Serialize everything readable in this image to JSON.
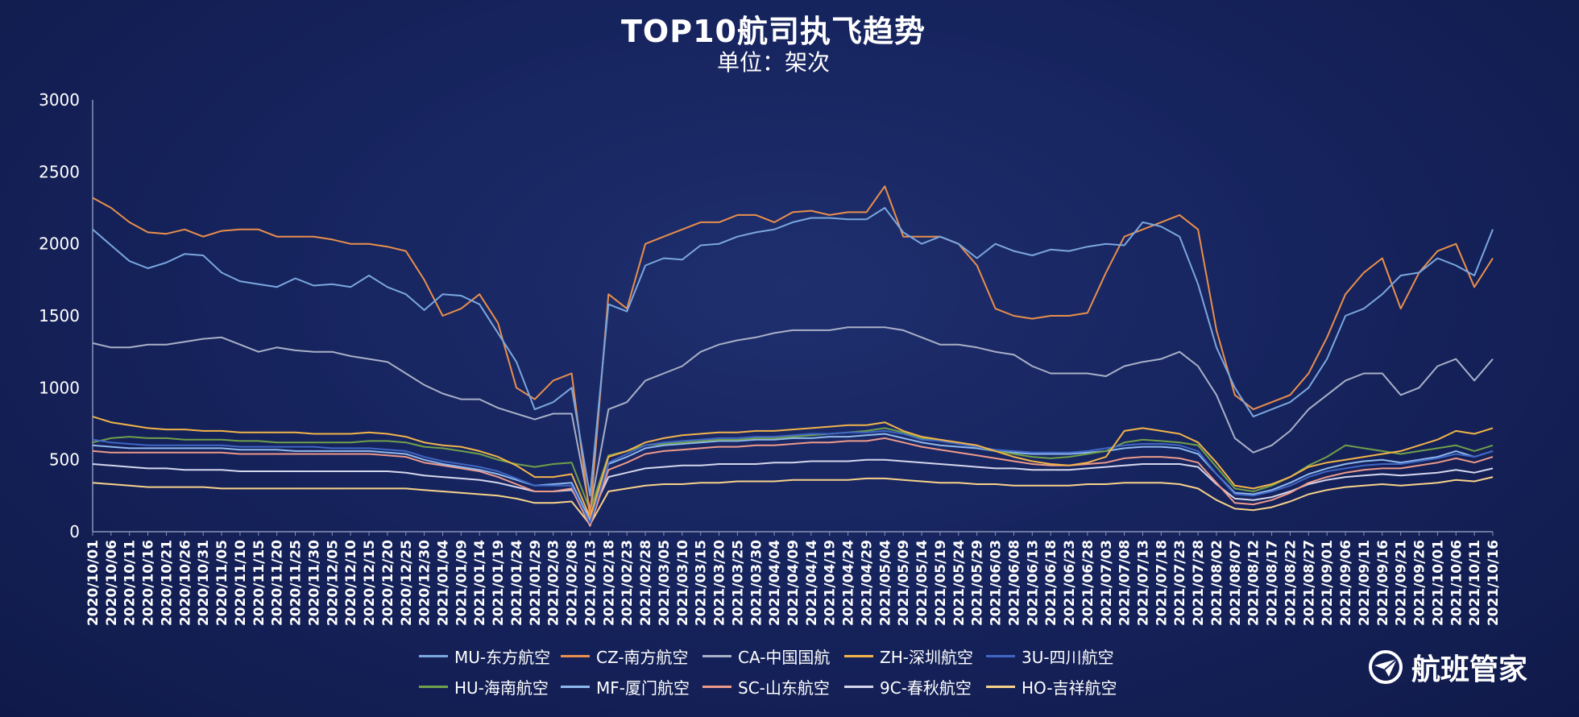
{
  "chart_data": {
    "type": "line",
    "title": "TOP10航司执飞趋势",
    "subtitle": "单位：架次",
    "ylim": [
      0,
      3000
    ],
    "y_ticks": [
      0,
      500,
      1000,
      1500,
      2000,
      2500,
      3000
    ],
    "x_tick_labels": [
      "2020/10/01",
      "2020/10/06",
      "2020/10/11",
      "2020/10/16",
      "2020/10/21",
      "2020/10/26",
      "2020/10/31",
      "2020/11/05",
      "2020/11/10",
      "2020/11/15",
      "2020/11/20",
      "2020/11/25",
      "2020/11/30",
      "2020/12/05",
      "2020/12/10",
      "2020/12/15",
      "2020/12/20",
      "2020/12/25",
      "2020/12/30",
      "2021/01/04",
      "2021/01/09",
      "2021/01/14",
      "2021/01/19",
      "2021/01/24",
      "2021/01/29",
      "2021/02/03",
      "2021/02/08",
      "2021/02/13",
      "2021/02/18",
      "2021/02/23",
      "2021/02/28",
      "2021/03/05",
      "2021/03/10",
      "2021/03/15",
      "2021/03/20",
      "2021/03/25",
      "2021/03/30",
      "2021/04/04",
      "2021/04/09",
      "2021/04/14",
      "2021/04/19",
      "2021/04/24",
      "2021/04/29",
      "2021/05/04",
      "2021/05/09",
      "2021/05/14",
      "2021/05/19",
      "2021/05/24",
      "2021/05/29",
      "2021/06/03",
      "2021/06/08",
      "2021/06/13",
      "2021/06/18",
      "2021/06/23",
      "2021/06/28",
      "2021/07/03",
      "2021/07/08",
      "2021/07/13",
      "2021/07/18",
      "2021/07/23",
      "2021/07/28",
      "2021/08/02",
      "2021/08/07",
      "2021/08/12",
      "2021/08/17",
      "2021/08/22",
      "2021/08/27",
      "2021/09/01",
      "2021/09/06",
      "2021/09/11",
      "2021/09/16",
      "2021/09/21",
      "2021/09/26",
      "2021/10/01",
      "2021/10/06",
      "2021/10/11",
      "2021/10/16"
    ],
    "legend_position": "bottom",
    "grid": false,
    "series": [
      {
        "name": "MU-东方航空",
        "color": "#7ba7df",
        "values": [
          2100,
          1990,
          1880,
          1830,
          1870,
          1930,
          1920,
          1800,
          1740,
          1720,
          1700,
          1760,
          1710,
          1720,
          1700,
          1780,
          1700,
          1650,
          1540,
          1650,
          1640,
          1580,
          1380,
          1180,
          850,
          900,
          1000,
          250,
          1580,
          1530,
          1850,
          1900,
          1890,
          1990,
          2000,
          2050,
          2080,
          2100,
          2150,
          2180,
          2180,
          2170,
          2170,
          2250,
          2080,
          2000,
          2050,
          2000,
          1900,
          2000,
          1950,
          1920,
          1960,
          1950,
          1980,
          2000,
          1990,
          2150,
          2120,
          2050,
          1720,
          1280,
          1000,
          800,
          850,
          900,
          1000,
          1200,
          1500,
          1550,
          1650,
          1780,
          1800,
          1900,
          1850,
          1780,
          2100
        ]
      },
      {
        "name": "CZ-南方航空",
        "color": "#e98f4c",
        "values": [
          2320,
          2250,
          2150,
          2080,
          2070,
          2100,
          2050,
          2090,
          2100,
          2100,
          2050,
          2050,
          2050,
          2030,
          2000,
          2000,
          1980,
          1950,
          1750,
          1500,
          1550,
          1650,
          1450,
          1000,
          920,
          1050,
          1100,
          100,
          1650,
          1550,
          2000,
          2050,
          2100,
          2150,
          2150,
          2200,
          2200,
          2150,
          2220,
          2230,
          2200,
          2220,
          2220,
          2400,
          2050,
          2050,
          2050,
          2000,
          1850,
          1550,
          1500,
          1480,
          1500,
          1500,
          1520,
          1800,
          2050,
          2100,
          2150,
          2200,
          2100,
          1400,
          950,
          850,
          900,
          950,
          1100,
          1350,
          1650,
          1800,
          1900,
          1550,
          1800,
          1950,
          2000,
          1700,
          1900
        ]
      },
      {
        "name": "CA-中国国航",
        "color": "#a9b0c8",
        "values": [
          1310,
          1280,
          1280,
          1300,
          1300,
          1320,
          1340,
          1350,
          1300,
          1250,
          1280,
          1260,
          1250,
          1250,
          1220,
          1200,
          1180,
          1100,
          1020,
          960,
          920,
          920,
          860,
          820,
          780,
          820,
          820,
          150,
          850,
          900,
          1050,
          1100,
          1150,
          1250,
          1300,
          1330,
          1350,
          1380,
          1400,
          1400,
          1400,
          1420,
          1420,
          1420,
          1400,
          1350,
          1300,
          1300,
          1280,
          1250,
          1230,
          1150,
          1100,
          1100,
          1100,
          1080,
          1150,
          1180,
          1200,
          1250,
          1150,
          950,
          650,
          550,
          600,
          700,
          850,
          950,
          1050,
          1100,
          1100,
          950,
          1000,
          1150,
          1200,
          1050,
          1200
        ]
      },
      {
        "name": "ZH-深圳航空",
        "color": "#f2b44a",
        "values": [
          800,
          760,
          740,
          720,
          710,
          710,
          700,
          700,
          690,
          690,
          690,
          690,
          680,
          680,
          680,
          690,
          680,
          660,
          620,
          600,
          590,
          560,
          520,
          460,
          380,
          380,
          400,
          100,
          520,
          560,
          620,
          650,
          670,
          680,
          690,
          690,
          700,
          700,
          710,
          720,
          730,
          740,
          740,
          760,
          700,
          660,
          640,
          620,
          600,
          560,
          520,
          490,
          470,
          460,
          480,
          520,
          700,
          720,
          700,
          680,
          620,
          480,
          320,
          300,
          330,
          380,
          450,
          480,
          500,
          520,
          540,
          560,
          600,
          640,
          700,
          680,
          720
        ]
      },
      {
        "name": "3U-四川航空",
        "color": "#3f66c4",
        "values": [
          640,
          620,
          610,
          600,
          600,
          600,
          600,
          600,
          590,
          590,
          590,
          590,
          590,
          580,
          580,
          580,
          570,
          560,
          520,
          490,
          470,
          450,
          420,
          370,
          320,
          320,
          320,
          60,
          480,
          540,
          600,
          620,
          630,
          640,
          650,
          650,
          660,
          660,
          670,
          680,
          680,
          690,
          690,
          700,
          680,
          640,
          630,
          610,
          590,
          570,
          560,
          550,
          550,
          550,
          560,
          580,
          600,
          610,
          610,
          600,
          560,
          400,
          260,
          250,
          280,
          320,
          380,
          420,
          440,
          460,
          470,
          470,
          490,
          510,
          540,
          520,
          560
        ]
      },
      {
        "name": "HU-海南航空",
        "color": "#6fa04a",
        "values": [
          620,
          650,
          660,
          650,
          650,
          640,
          640,
          640,
          630,
          630,
          620,
          620,
          620,
          620,
          620,
          630,
          630,
          620,
          590,
          580,
          560,
          540,
          500,
          470,
          450,
          470,
          480,
          150,
          530,
          560,
          600,
          610,
          620,
          630,
          640,
          640,
          650,
          650,
          660,
          670,
          680,
          690,
          700,
          720,
          690,
          650,
          630,
          610,
          590,
          560,
          540,
          520,
          510,
          520,
          540,
          560,
          620,
          640,
          630,
          620,
          600,
          450,
          300,
          280,
          320,
          380,
          460,
          520,
          600,
          580,
          560,
          540,
          560,
          580,
          600,
          560,
          600
        ]
      },
      {
        "name": "MF-厦门航空",
        "color": "#8fb8ee",
        "values": [
          600,
          590,
          580,
          580,
          580,
          580,
          580,
          580,
          570,
          570,
          570,
          560,
          560,
          560,
          560,
          560,
          550,
          540,
          500,
          470,
          450,
          430,
          400,
          360,
          320,
          330,
          340,
          80,
          470,
          520,
          580,
          600,
          610,
          620,
          630,
          630,
          640,
          640,
          650,
          650,
          660,
          660,
          670,
          680,
          650,
          620,
          600,
          590,
          580,
          560,
          550,
          540,
          540,
          540,
          550,
          560,
          580,
          590,
          590,
          580,
          540,
          400,
          270,
          260,
          290,
          340,
          400,
          440,
          470,
          490,
          500,
          480,
          500,
          520,
          560,
          520,
          560
        ]
      },
      {
        "name": "SC-山东航空",
        "color": "#ee9a8a",
        "values": [
          560,
          550,
          550,
          550,
          550,
          550,
          550,
          550,
          540,
          540,
          540,
          540,
          540,
          540,
          540,
          540,
          530,
          520,
          480,
          460,
          440,
          420,
          380,
          330,
          280,
          280,
          300,
          40,
          430,
          480,
          540,
          560,
          570,
          580,
          590,
          590,
          600,
          600,
          610,
          620,
          620,
          630,
          630,
          650,
          620,
          590,
          570,
          550,
          530,
          510,
          490,
          470,
          460,
          460,
          470,
          480,
          510,
          520,
          520,
          510,
          480,
          340,
          200,
          190,
          220,
          270,
          340,
          380,
          410,
          430,
          440,
          440,
          460,
          480,
          510,
          480,
          520
        ]
      },
      {
        "name": "9C-春秋航空",
        "color": "#d4d6ec",
        "values": [
          470,
          460,
          450,
          440,
          440,
          430,
          430,
          430,
          420,
          420,
          420,
          420,
          420,
          420,
          420,
          420,
          420,
          410,
          390,
          380,
          370,
          360,
          340,
          310,
          280,
          280,
          290,
          100,
          380,
          410,
          440,
          450,
          460,
          460,
          470,
          470,
          470,
          480,
          480,
          490,
          490,
          490,
          500,
          500,
          490,
          480,
          470,
          460,
          450,
          440,
          440,
          430,
          430,
          430,
          440,
          450,
          460,
          470,
          470,
          470,
          450,
          330,
          230,
          220,
          240,
          280,
          330,
          360,
          380,
          390,
          400,
          390,
          400,
          410,
          430,
          410,
          440
        ]
      },
      {
        "name": "HO-吉祥航空",
        "color": "#f7d28a",
        "values": [
          340,
          330,
          320,
          310,
          310,
          310,
          310,
          300,
          300,
          300,
          300,
          300,
          300,
          300,
          300,
          300,
          300,
          300,
          290,
          280,
          270,
          260,
          250,
          230,
          200,
          200,
          210,
          50,
          280,
          300,
          320,
          330,
          330,
          340,
          340,
          350,
          350,
          350,
          360,
          360,
          360,
          360,
          370,
          370,
          360,
          350,
          340,
          340,
          330,
          330,
          320,
          320,
          320,
          320,
          330,
          330,
          340,
          340,
          340,
          330,
          300,
          220,
          160,
          150,
          170,
          210,
          260,
          290,
          310,
          320,
          330,
          320,
          330,
          340,
          360,
          350,
          380
        ]
      }
    ]
  },
  "branding": {
    "name": "航班管家",
    "icon": "plane-logo-icon"
  }
}
